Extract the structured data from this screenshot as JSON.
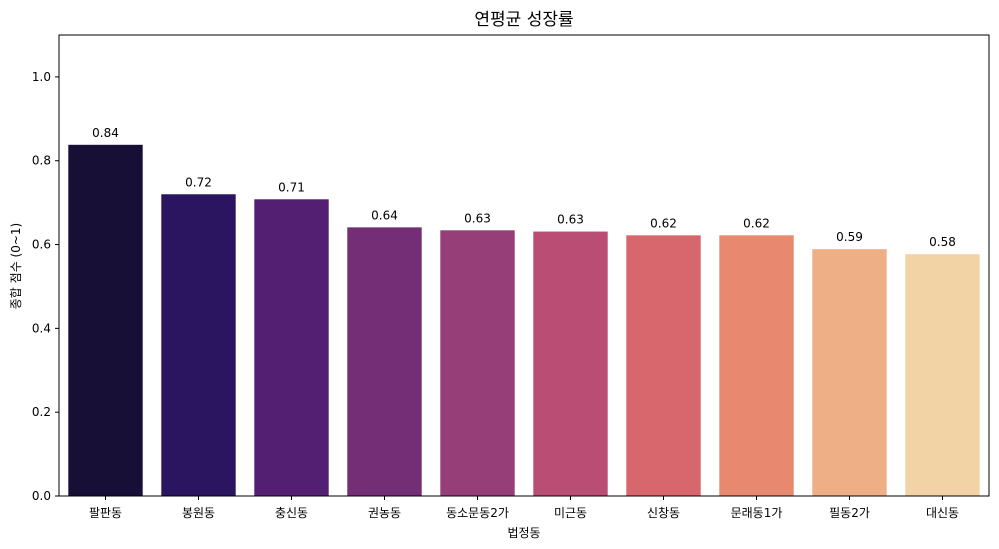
{
  "chart_data": {
    "type": "bar",
    "title": "연평균 성장률",
    "xlabel": "법정동",
    "ylabel": "종합 점수 (0~1)",
    "ylim": [
      0,
      1.1
    ],
    "yticks": [
      0.0,
      0.2,
      0.4,
      0.6,
      0.8,
      1.0
    ],
    "ytick_labels": [
      "0.0",
      "0.2",
      "0.4",
      "0.6",
      "0.8",
      "1.0"
    ],
    "grid": false,
    "categories": [
      "팔판동",
      "봉원동",
      "충신동",
      "권농동",
      "동소문동2가",
      "미근동",
      "신창동",
      "문래동1가",
      "필동2가",
      "대신동"
    ],
    "values": [
      0.838,
      0.72,
      0.708,
      0.641,
      0.634,
      0.631,
      0.622,
      0.622,
      0.589,
      0.577
    ],
    "data_labels": [
      "0.84",
      "0.72",
      "0.71",
      "0.64",
      "0.63",
      "0.63",
      "0.62",
      "0.62",
      "0.59",
      "0.58"
    ],
    "colors": [
      "#170f35",
      "#2c1560",
      "#531f72",
      "#732e75",
      "#963e77",
      "#b94d73",
      "#d7666d",
      "#e8886e",
      "#eeaf87",
      "#f1d3a6"
    ]
  }
}
